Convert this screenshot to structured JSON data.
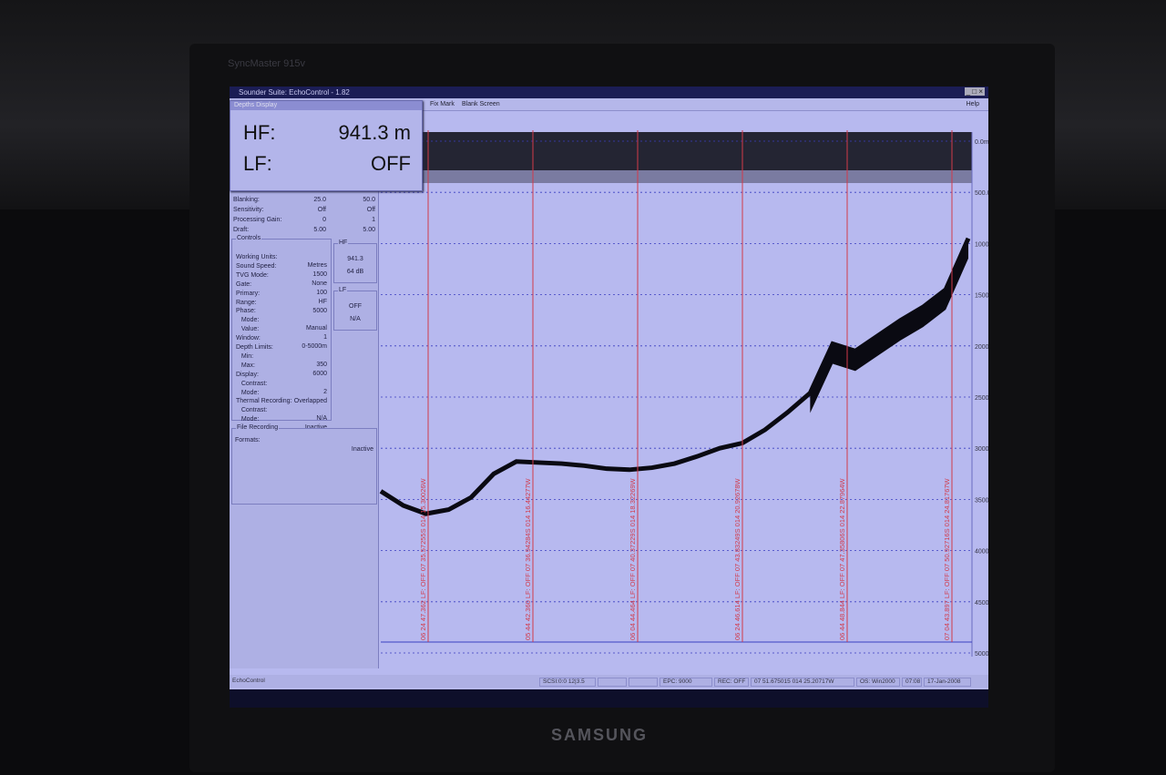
{
  "monitor": {
    "model": "SyncMaster 915v",
    "brand": "SAMSUNG"
  },
  "window": {
    "title": "Sounder Suite: EchoControl - 1.82"
  },
  "menu": {
    "items": [
      "Fix Mark",
      "Blank Screen"
    ],
    "help": "Help"
  },
  "depth_display": {
    "title": "Depths Display",
    "hf_label": "HF:",
    "hf_value": "941.3 m",
    "lf_label": "LF:",
    "lf_value": "OFF"
  },
  "settings": [
    {
      "key": "Blanking:",
      "hf": "25.0",
      "lf": "50.0"
    },
    {
      "key": "Sensitivity:",
      "hf": "Off",
      "lf": "Off"
    },
    {
      "key": "Processing Gain:",
      "hf": "0",
      "lf": "1"
    },
    {
      "key": "Draft:",
      "hf": "5.00",
      "lf": "5.00"
    }
  ],
  "controls": {
    "caption": "Controls",
    "rows": [
      {
        "k": "Working Units:",
        "v": "Metres"
      },
      {
        "k": "Sound Speed:",
        "v": "1500"
      },
      {
        "k": "TVG Mode:",
        "v": "None"
      },
      {
        "k": "Gate:",
        "v": "100"
      },
      {
        "k": "Primary:",
        "v": "HF"
      },
      {
        "k": "Range:",
        "v": "5000"
      },
      {
        "k": "Phase:",
        "v": ""
      },
      {
        "k": "   Mode:",
        "v": "Manual"
      },
      {
        "k": "   Value:",
        "v": "1"
      },
      {
        "k": "Window:",
        "v": "0-5000m"
      },
      {
        "k": "Depth Limits:",
        "v": ""
      },
      {
        "k": "   Min:",
        "v": "350"
      },
      {
        "k": "   Max:",
        "v": "6000"
      },
      {
        "k": "Display:",
        "v": ""
      },
      {
        "k": "   Contrast:",
        "v": "2"
      },
      {
        "k": "   Mode:",
        "v": "Overlapped"
      },
      {
        "k": "Thermal Recording:",
        "v": ""
      },
      {
        "k": "   Contrast:",
        "v": "N/A"
      },
      {
        "k": "   Mode:",
        "v": "Inactive"
      }
    ]
  },
  "hf_box": {
    "caption": "HF",
    "depth": "941.3",
    "gain": "64 dB"
  },
  "lf_box": {
    "caption": "LF",
    "depth": "OFF",
    "gain": "N/A"
  },
  "file_recording": {
    "caption": "File Recording",
    "key": "Formats:",
    "value": "Inactive"
  },
  "status_bar": {
    "left": "EchoControl",
    "items": [
      "SCSI:0:0  12|3.5",
      "",
      "",
      "EPC: 9000",
      "REC: OFF",
      "07 51.675015  014 25.20717W",
      "OS: Win2000",
      "07:08",
      "17-Jan-2008"
    ]
  },
  "chart_data": {
    "type": "area",
    "ylabel": "",
    "ylim": [
      0,
      5000
    ],
    "y_ticks": [
      "0.0m",
      "500.0m",
      "1000.0m",
      "1500.0m",
      "2000.0m",
      "2500.0m",
      "3000.0m",
      "3500.0m",
      "4000.0m",
      "4500.0m",
      "5000.0m"
    ],
    "y_inverted": true,
    "grid": true,
    "fix_marks": [
      "06 24 47.362  LF: OFF  07 35.57255S  014 15.30026W",
      "05 44 42.360  LF: OFF  07 36.94284S  014 16.44277W",
      "06 04 44.464  LF: OFF  07 40.37229S  014 18.32269W",
      "06 24 46.614  LF: OFF  07 43.83249S  014 20.92678W",
      "06 44 48.844  LF: OFF  07 47.35806S  014 22.87964W",
      "07 04 43.897  LF: OFF  07 50.92716S  014 24.81767W"
    ],
    "seabed_depth_m": [
      3420,
      3560,
      3640,
      3600,
      3480,
      3250,
      3130,
      3140,
      3150,
      3170,
      3200,
      3210,
      3190,
      3150,
      3080,
      3000,
      2950,
      2820,
      2650,
      2460,
      1980,
      2050,
      1900,
      1750,
      1620,
      1450,
      950
    ],
    "colors": {
      "fix_line": "#d23a4a",
      "grid": "#3a3ec0",
      "echo": "#0a0a12",
      "background": "#b7b9ef"
    }
  }
}
